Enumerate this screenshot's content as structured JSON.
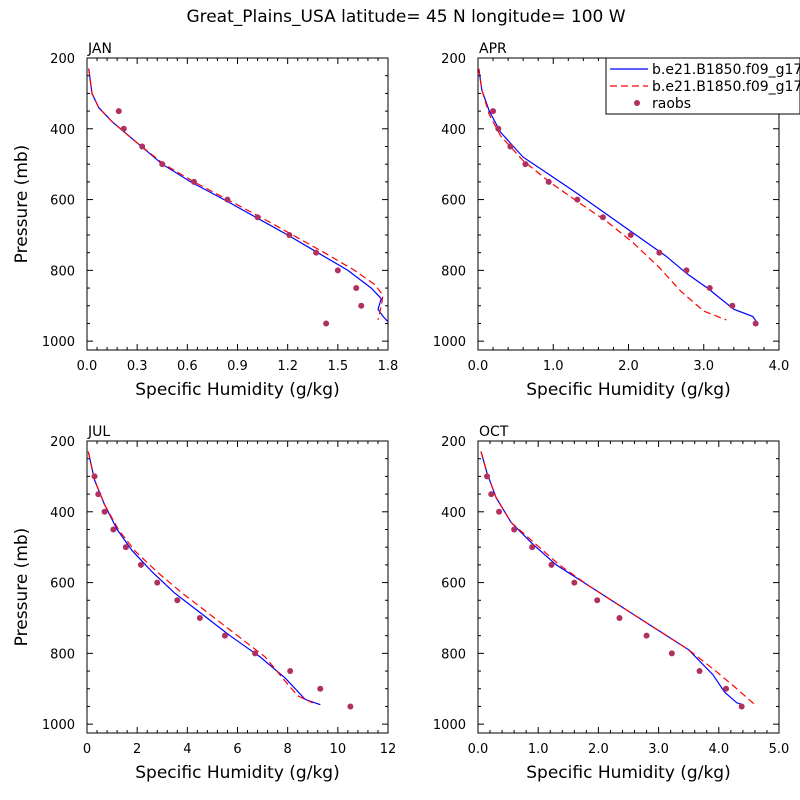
{
  "title": "Great_Plains_USA  latitude= 45 N longitude= 100 W",
  "legend": {
    "placement": "top-right of APR panel",
    "entries": [
      {
        "label": "b.e21.B1850.f09_g17.",
        "style": "solid",
        "color": "#0000ff"
      },
      {
        "label": "b.e21.B1850.f09_g17.",
        "style": "dashed",
        "color": "#ff0000"
      },
      {
        "label": "raobs",
        "style": "marker",
        "color": "#b03060"
      }
    ]
  },
  "chart_data": [
    {
      "type": "line",
      "title": "JAN",
      "xlabel": "Specific Humidity (g/kg)",
      "ylabel": "Pressure (mb)",
      "xlim": [
        0,
        1.8
      ],
      "ylim": [
        200,
        1025
      ],
      "y_inverted": true,
      "xticks": [
        "0.0",
        "0.3",
        "0.6",
        "0.9",
        "1.2",
        "1.5",
        "1.8"
      ],
      "yticks": [
        "200",
        "400",
        "600",
        "800",
        "1000"
      ],
      "series": [
        {
          "color": "#0000ff",
          "dash": "",
          "points": [
            [
              0.01,
              230
            ],
            [
              0.03,
              300
            ],
            [
              0.07,
              340
            ],
            [
              0.15,
              380
            ],
            [
              0.3,
              440
            ],
            [
              0.45,
              500
            ],
            [
              0.62,
              550
            ],
            [
              0.82,
              600
            ],
            [
              1.01,
              650
            ],
            [
              1.2,
              700
            ],
            [
              1.38,
              750
            ],
            [
              1.56,
              800
            ],
            [
              1.7,
              850
            ],
            [
              1.76,
              880
            ],
            [
              1.74,
              910
            ],
            [
              1.77,
              930
            ],
            [
              1.8,
              945
            ]
          ]
        },
        {
          "color": "#ff0000",
          "dash": "7,4",
          "points": [
            [
              0.01,
              230
            ],
            [
              0.03,
              300
            ],
            [
              0.07,
              340
            ],
            [
              0.15,
              380
            ],
            [
              0.3,
              440
            ],
            [
              0.46,
              500
            ],
            [
              0.64,
              550
            ],
            [
              0.84,
              600
            ],
            [
              1.04,
              650
            ],
            [
              1.23,
              700
            ],
            [
              1.42,
              750
            ],
            [
              1.6,
              800
            ],
            [
              1.72,
              840
            ],
            [
              1.77,
              870
            ],
            [
              1.76,
              900
            ],
            [
              1.74,
              940
            ]
          ]
        }
      ],
      "markers": [
        [
          0.19,
          350
        ],
        [
          0.22,
          400
        ],
        [
          0.33,
          450
        ],
        [
          0.45,
          500
        ],
        [
          0.64,
          550
        ],
        [
          0.84,
          600
        ],
        [
          1.02,
          650
        ],
        [
          1.21,
          700
        ],
        [
          1.37,
          750
        ],
        [
          1.5,
          800
        ],
        [
          1.61,
          850
        ],
        [
          1.64,
          900
        ],
        [
          1.43,
          950
        ]
      ]
    },
    {
      "type": "line",
      "title": "APR",
      "xlabel": "Specific Humidity (g/kg)",
      "ylabel": "",
      "xlim": [
        0,
        4.0
      ],
      "ylim": [
        200,
        1025
      ],
      "y_inverted": true,
      "xticks": [
        "0.0",
        "1.0",
        "2.0",
        "3.0",
        "4.0"
      ],
      "yticks": [
        "200",
        "400",
        "600",
        "800",
        "1000"
      ],
      "series": [
        {
          "color": "#0000ff",
          "dash": "",
          "points": [
            [
              0.01,
              230
            ],
            [
              0.05,
              290
            ],
            [
              0.15,
              350
            ],
            [
              0.3,
              410
            ],
            [
              0.6,
              480
            ],
            [
              0.95,
              530
            ],
            [
              1.3,
              580
            ],
            [
              1.7,
              640
            ],
            [
              2.1,
              700
            ],
            [
              2.5,
              760
            ],
            [
              2.78,
              810
            ],
            [
              3.05,
              850
            ],
            [
              3.4,
              910
            ],
            [
              3.65,
              930
            ],
            [
              3.7,
              945
            ]
          ]
        },
        {
          "color": "#ff0000",
          "dash": "7,4",
          "points": [
            [
              0.01,
              230
            ],
            [
              0.05,
              290
            ],
            [
              0.15,
              360
            ],
            [
              0.3,
              420
            ],
            [
              0.6,
              490
            ],
            [
              0.95,
              550
            ],
            [
              1.35,
              610
            ],
            [
              1.7,
              660
            ],
            [
              2.05,
              720
            ],
            [
              2.4,
              790
            ],
            [
              2.7,
              860
            ],
            [
              3.0,
              915
            ],
            [
              3.3,
              940
            ]
          ]
        }
      ],
      "markers": [
        [
          0.2,
          350
        ],
        [
          0.27,
          400
        ],
        [
          0.43,
          450
        ],
        [
          0.63,
          500
        ],
        [
          0.94,
          550
        ],
        [
          1.32,
          600
        ],
        [
          1.66,
          650
        ],
        [
          2.03,
          700
        ],
        [
          2.41,
          750
        ],
        [
          2.77,
          800
        ],
        [
          3.08,
          850
        ],
        [
          3.38,
          900
        ],
        [
          3.69,
          950
        ]
      ]
    },
    {
      "type": "line",
      "title": "JUL",
      "xlabel": "Specific Humidity (g/kg)",
      "ylabel": "Pressure (mb)",
      "xlim": [
        0,
        12
      ],
      "ylim": [
        200,
        1025
      ],
      "y_inverted": true,
      "xticks": [
        "0",
        "2",
        "4",
        "6",
        "8",
        "10",
        "12"
      ],
      "yticks": [
        "200",
        "400",
        "600",
        "800",
        "1000"
      ],
      "series": [
        {
          "color": "#0000ff",
          "dash": "",
          "points": [
            [
              0.05,
              230
            ],
            [
              0.3,
              310
            ],
            [
              0.7,
              380
            ],
            [
              1.2,
              450
            ],
            [
              1.8,
              510
            ],
            [
              2.6,
              570
            ],
            [
              3.5,
              630
            ],
            [
              4.6,
              690
            ],
            [
              5.7,
              750
            ],
            [
              6.9,
              810
            ],
            [
              7.9,
              870
            ],
            [
              8.7,
              930
            ],
            [
              9.3,
              945
            ]
          ]
        },
        {
          "color": "#ff0000",
          "dash": "7,4",
          "points": [
            [
              0.05,
              230
            ],
            [
              0.3,
              310
            ],
            [
              0.7,
              380
            ],
            [
              1.25,
              450
            ],
            [
              1.9,
              510
            ],
            [
              2.8,
              570
            ],
            [
              3.8,
              630
            ],
            [
              4.9,
              690
            ],
            [
              6.0,
              750
            ],
            [
              7.1,
              810
            ],
            [
              7.8,
              870
            ],
            [
              8.4,
              920
            ],
            [
              9.0,
              940
            ]
          ]
        }
      ],
      "markers": [
        [
          0.3,
          300
        ],
        [
          0.45,
          350
        ],
        [
          0.7,
          400
        ],
        [
          1.05,
          450
        ],
        [
          1.55,
          500
        ],
        [
          2.15,
          550
        ],
        [
          2.8,
          600
        ],
        [
          3.6,
          650
        ],
        [
          4.5,
          700
        ],
        [
          5.5,
          750
        ],
        [
          6.7,
          800
        ],
        [
          8.1,
          850
        ],
        [
          9.3,
          900
        ],
        [
          10.5,
          950
        ]
      ]
    },
    {
      "type": "line",
      "title": "OCT",
      "xlabel": "Specific Humidity (g/kg)",
      "ylabel": "",
      "xlim": [
        0,
        5.0
      ],
      "ylim": [
        200,
        1025
      ],
      "y_inverted": true,
      "xticks": [
        "0.0",
        "1.0",
        "2.0",
        "3.0",
        "4.0",
        "5.0"
      ],
      "yticks": [
        "200",
        "400",
        "600",
        "800",
        "1000"
      ],
      "series": [
        {
          "color": "#0000ff",
          "dash": "",
          "points": [
            [
              0.05,
              230
            ],
            [
              0.15,
              290
            ],
            [
              0.3,
              360
            ],
            [
              0.55,
              430
            ],
            [
              0.9,
              490
            ],
            [
              1.3,
              550
            ],
            [
              1.85,
              610
            ],
            [
              2.4,
              670
            ],
            [
              2.95,
              730
            ],
            [
              3.5,
              790
            ],
            [
              3.9,
              860
            ],
            [
              4.1,
              910
            ],
            [
              4.3,
              940
            ],
            [
              4.4,
              945
            ]
          ]
        },
        {
          "color": "#ff0000",
          "dash": "7,4",
          "points": [
            [
              0.05,
              230
            ],
            [
              0.15,
              290
            ],
            [
              0.3,
              360
            ],
            [
              0.55,
              430
            ],
            [
              0.95,
              490
            ],
            [
              1.35,
              550
            ],
            [
              1.85,
              610
            ],
            [
              2.4,
              670
            ],
            [
              2.95,
              730
            ],
            [
              3.5,
              790
            ],
            [
              3.95,
              850
            ],
            [
              4.3,
              900
            ],
            [
              4.6,
              945
            ]
          ]
        }
      ],
      "markers": [
        [
          0.15,
          300
        ],
        [
          0.22,
          350
        ],
        [
          0.35,
          400
        ],
        [
          0.6,
          450
        ],
        [
          0.9,
          500
        ],
        [
          1.22,
          550
        ],
        [
          1.6,
          600
        ],
        [
          1.98,
          650
        ],
        [
          2.35,
          700
        ],
        [
          2.8,
          750
        ],
        [
          3.22,
          800
        ],
        [
          3.68,
          850
        ],
        [
          4.12,
          900
        ],
        [
          4.38,
          950
        ]
      ]
    }
  ]
}
